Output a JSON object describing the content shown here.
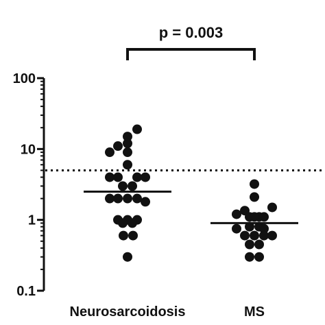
{
  "chart_data": {
    "type": "scatter",
    "y_scale": "log",
    "ylim": [
      0.1,
      100
    ],
    "y_ticks": [
      {
        "value": 0.1,
        "label": "0.1"
      },
      {
        "value": 1,
        "label": "1"
      },
      {
        "value": 10,
        "label": "10"
      },
      {
        "value": 100,
        "label": "100"
      }
    ],
    "categories": [
      "Neurosarcoidosis",
      "MS"
    ],
    "reference_line": {
      "value": 5,
      "style": "dotted"
    },
    "annotation": {
      "text": "p  = 0.003",
      "between": [
        "Neurosarcoidosis",
        "MS"
      ]
    },
    "series": [
      {
        "category": "Neurosarcoidosis",
        "median": 2.5,
        "points": [
          {
            "jitter": 0.7,
            "y": 19
          },
          {
            "jitter": 0,
            "y": 15
          },
          {
            "jitter": -0.7,
            "y": 11
          },
          {
            "jitter": 0,
            "y": 12
          },
          {
            "jitter": -1.3,
            "y": 9
          },
          {
            "jitter": 0,
            "y": 9
          },
          {
            "jitter": 0,
            "y": 6
          },
          {
            "jitter": -1.3,
            "y": 4
          },
          {
            "jitter": -0.7,
            "y": 4
          },
          {
            "jitter": 0.7,
            "y": 4
          },
          {
            "jitter": 1.3,
            "y": 4
          },
          {
            "jitter": -0.35,
            "y": 3
          },
          {
            "jitter": 0.35,
            "y": 3
          },
          {
            "jitter": -1.3,
            "y": 2
          },
          {
            "jitter": -0.7,
            "y": 2
          },
          {
            "jitter": 0,
            "y": 2
          },
          {
            "jitter": 0.7,
            "y": 2
          },
          {
            "jitter": 1.3,
            "y": 1.8
          },
          {
            "jitter": -0.7,
            "y": 1
          },
          {
            "jitter": 0,
            "y": 1
          },
          {
            "jitter": 0.7,
            "y": 1
          },
          {
            "jitter": -0.35,
            "y": 0.9
          },
          {
            "jitter": 0.35,
            "y": 0.9
          },
          {
            "jitter": -0.3,
            "y": 0.6
          },
          {
            "jitter": 0.4,
            "y": 0.6
          },
          {
            "jitter": 0,
            "y": 0.3
          }
        ]
      },
      {
        "category": "MS",
        "median": 0.9,
        "points": [
          {
            "jitter": 0,
            "y": 3.2
          },
          {
            "jitter": 0,
            "y": 2.1
          },
          {
            "jitter": 1.3,
            "y": 1.5
          },
          {
            "jitter": -0.7,
            "y": 1.35
          },
          {
            "jitter": -1.3,
            "y": 1.2
          },
          {
            "jitter": -0.35,
            "y": 1.1
          },
          {
            "jitter": 0.35,
            "y": 1.1
          },
          {
            "jitter": 0.7,
            "y": 1.1
          },
          {
            "jitter": 0,
            "y": 1.1
          },
          {
            "jitter": -1.3,
            "y": 0.75
          },
          {
            "jitter": -0.35,
            "y": 0.8
          },
          {
            "jitter": 0.35,
            "y": 0.8
          },
          {
            "jitter": 0.7,
            "y": 0.75
          },
          {
            "jitter": -0.7,
            "y": 0.6
          },
          {
            "jitter": 0,
            "y": 0.6
          },
          {
            "jitter": 0.7,
            "y": 0.6
          },
          {
            "jitter": 1.3,
            "y": 0.6
          },
          {
            "jitter": -0.35,
            "y": 0.45
          },
          {
            "jitter": 0.35,
            "y": 0.45
          },
          {
            "jitter": -0.35,
            "y": 0.3
          },
          {
            "jitter": 0.35,
            "y": 0.3
          }
        ]
      }
    ]
  }
}
